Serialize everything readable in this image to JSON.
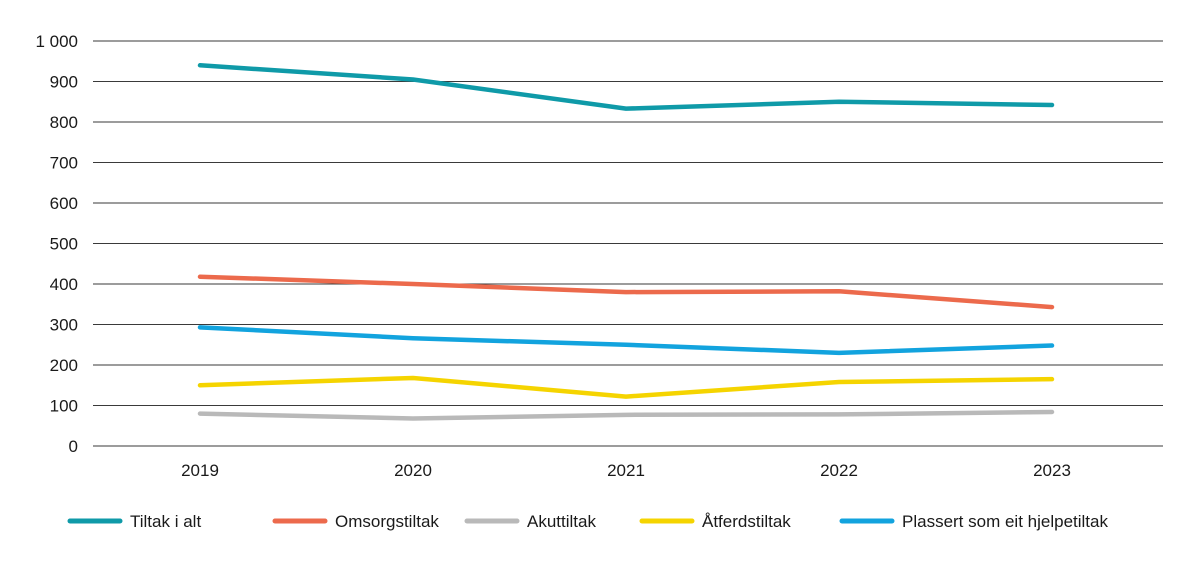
{
  "chart_data": {
    "type": "line",
    "title": "",
    "xlabel": "",
    "ylabel": "",
    "categories": [
      "2019",
      "2020",
      "2021",
      "2022",
      "2023"
    ],
    "ylim": [
      0,
      1000
    ],
    "yticks": [
      0,
      100,
      200,
      300,
      400,
      500,
      600,
      700,
      800,
      900,
      1000
    ],
    "ytick_labels": [
      "0",
      "100",
      "200",
      "300",
      "400",
      "500",
      "600",
      "700",
      "800",
      "900",
      "1 000"
    ],
    "grid": true,
    "legend_position": "bottom",
    "series": [
      {
        "name": "Tiltak i alt",
        "color": "#0f9aa8",
        "values": [
          940,
          905,
          833,
          850,
          842
        ]
      },
      {
        "name": "Omsorgstiltak",
        "color": "#ec6a4c",
        "values": [
          418,
          400,
          380,
          382,
          343
        ]
      },
      {
        "name": "Akuttiltak",
        "color": "#b9b9b9",
        "values": [
          80,
          68,
          77,
          78,
          84
        ]
      },
      {
        "name": "Åtferdstiltak",
        "color": "#f5d400",
        "values": [
          150,
          168,
          122,
          158,
          165
        ]
      },
      {
        "name": "Plassert som eit hjelpetiltak",
        "color": "#12a3de",
        "values": [
          293,
          266,
          250,
          230,
          248
        ]
      }
    ]
  }
}
